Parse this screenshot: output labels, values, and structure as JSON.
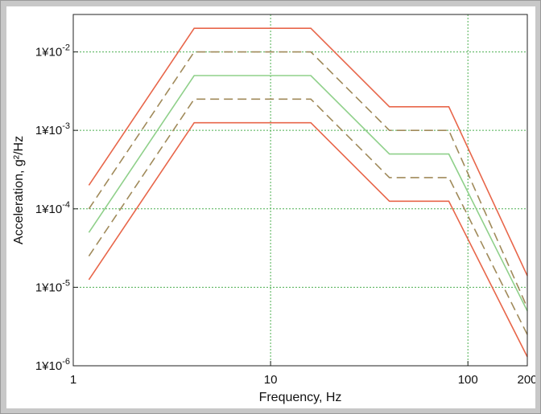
{
  "chart_data": {
    "type": "line",
    "title": "",
    "xlabel": "Frequency, Hz",
    "ylabel": "Acceleration, g²/Hz",
    "xscale": "log",
    "yscale": "log",
    "xlim": [
      1,
      200
    ],
    "ylim": [
      1e-06,
      0.03
    ],
    "grid": true,
    "x_ticks": [
      {
        "value": 1,
        "label": "1"
      },
      {
        "value": 10,
        "label": "10"
      },
      {
        "value": 100,
        "label": "100"
      },
      {
        "value": 200,
        "label": "200"
      }
    ],
    "y_ticks": [
      {
        "value": 1e-06,
        "base": "1¥10",
        "exp": "-6"
      },
      {
        "value": 1e-05,
        "base": "1¥10",
        "exp": "-5"
      },
      {
        "value": 0.0001,
        "base": "1¥10",
        "exp": "-4"
      },
      {
        "value": 0.001,
        "base": "1¥10",
        "exp": "-3"
      },
      {
        "value": 0.01,
        "base": "1¥10",
        "exp": "-2"
      }
    ],
    "series": [
      {
        "color": "#e8664a",
        "dash": "solid",
        "x": [
          1.2,
          4.1,
          16,
          40,
          80,
          200
        ],
        "y": [
          0.0002,
          0.02,
          0.02,
          0.002,
          0.002,
          1.4e-05
        ]
      },
      {
        "color": "#a08a5a",
        "dash": "dashed",
        "x": [
          1.2,
          4.1,
          16,
          40,
          80,
          200
        ],
        "y": [
          0.0001,
          0.01,
          0.01,
          0.001,
          0.001,
          5.5e-06
        ]
      },
      {
        "color": "#8fd08a",
        "dash": "solid",
        "x": [
          1.2,
          4.1,
          16,
          40,
          80,
          200
        ],
        "y": [
          5e-05,
          0.005,
          0.005,
          0.0005,
          0.0005,
          5e-06
        ]
      },
      {
        "color": "#a08a5a",
        "dash": "dashed",
        "x": [
          1.2,
          4.1,
          16,
          40,
          80,
          200
        ],
        "y": [
          2.5e-05,
          0.0025,
          0.0025,
          0.00025,
          0.00025,
          2.5e-06
        ]
      },
      {
        "color": "#e8664a",
        "dash": "solid",
        "x": [
          1.2,
          4.1,
          16,
          40,
          80,
          200
        ],
        "y": [
          1.25e-05,
          0.00125,
          0.00125,
          0.000125,
          0.000125,
          1.3e-06
        ]
      }
    ]
  }
}
